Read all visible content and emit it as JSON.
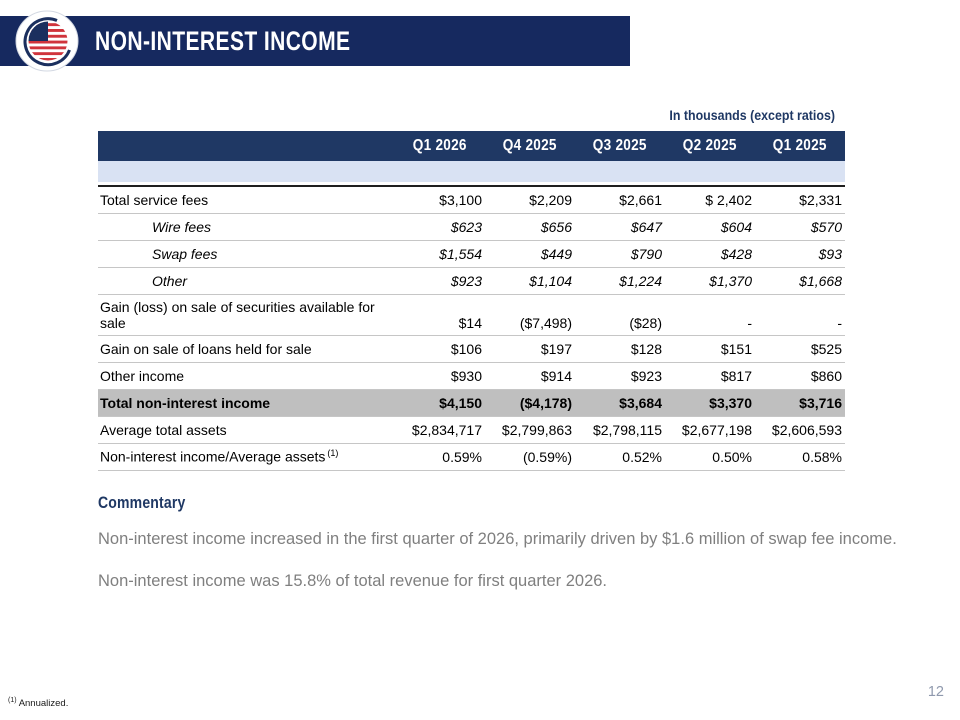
{
  "slide": {
    "title": "NON-INTEREST INCOME",
    "page_number": "12"
  },
  "logo": {
    "name": "american-flag-globe-logo"
  },
  "table": {
    "units_note": "In thousands (except ratios)",
    "columns": [
      "Q1 2026",
      "Q4 2025",
      "Q3 2025",
      "Q2 2025",
      "Q1 2025"
    ],
    "rows": [
      {
        "label": "Total service fees",
        "values": [
          "$3,100",
          "$2,209",
          "$2,661",
          "$ 2,402",
          "$2,331"
        ],
        "style": "first"
      },
      {
        "label": "Wire fees",
        "values": [
          "$623",
          "$656",
          "$647",
          "$604",
          "$570"
        ],
        "style": "sub"
      },
      {
        "label": "Swap fees",
        "values": [
          "$1,554",
          "$449",
          "$790",
          "$428",
          "$93"
        ],
        "style": "sub"
      },
      {
        "label": "Other",
        "values": [
          "$923",
          "$1,104",
          "$1,224",
          "$1,370",
          "$1,668"
        ],
        "style": "sub"
      },
      {
        "label": "Gain (loss) on sale of securities available for sale",
        "values": [
          "$14",
          "($7,498)",
          "($28)",
          "-",
          "-"
        ],
        "style": "wrap"
      },
      {
        "label": "Gain on sale of loans held for sale",
        "values": [
          "$106",
          "$197",
          "$128",
          "$151",
          "$525"
        ],
        "style": ""
      },
      {
        "label": "Other income",
        "values": [
          "$930",
          "$914",
          "$923",
          "$817",
          "$860"
        ],
        "style": ""
      },
      {
        "label": "Total non-interest income",
        "values": [
          "$4,150",
          "($4,178)",
          "$3,684",
          "$3,370",
          "$3,716"
        ],
        "style": "total"
      },
      {
        "label": "Average total assets",
        "values": [
          "$2,834,717",
          "$2,799,863",
          "$2,798,115",
          "$2,677,198",
          "$2,606,593"
        ],
        "style": ""
      },
      {
        "label": "Non-interest income/Average assets",
        "label_sup": "(1)",
        "values": [
          "0.59%",
          "(0.59%)",
          "0.52%",
          "0.50%",
          "0.58%"
        ],
        "style": ""
      }
    ]
  },
  "commentary": {
    "heading": "Commentary",
    "paragraphs": [
      "Non-interest income increased in the first quarter of 2026, primarily driven by $1.6 million of swap fee income.",
      "Non-interest income was 15.8% of total revenue for first quarter 2026."
    ]
  },
  "footnote": {
    "marker": "(1)",
    "text": "Annualized."
  },
  "colors": {
    "title_bar_navy": "#16295f",
    "table_header_navy": "#1f3864",
    "light_blue_band": "#d9e2f3",
    "total_row_gray": "#bfbfbf",
    "body_text_gray": "#7f7f7f",
    "flag_red": "#d0343c",
    "flag_blue": "#1b2f5e"
  }
}
